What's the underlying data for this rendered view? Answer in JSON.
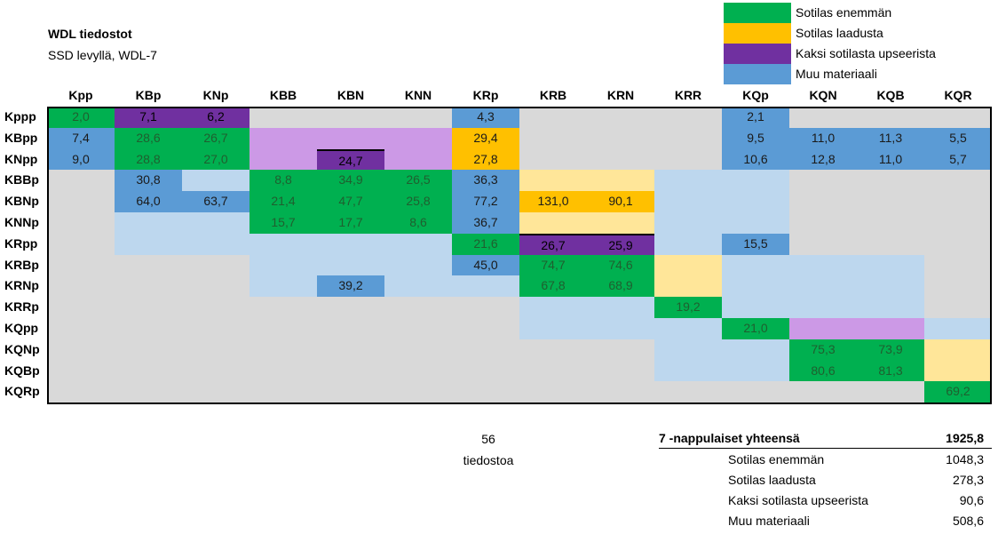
{
  "header": {
    "title": "WDL tiedostot",
    "subtitle": "SSD levyllä, WDL-7"
  },
  "legend": [
    {
      "label": "Sotilas enemmän",
      "color": "#00B050"
    },
    {
      "label": "Sotilas laadusta",
      "color": "#FFC000"
    },
    {
      "label": "Kaksi sotilasta upseerista",
      "color": "#7030A0"
    },
    {
      "label": "Muu materiaali",
      "color": "#5B9BD5"
    }
  ],
  "palette": {
    "grey": "#D9D9D9",
    "light_blue": "#BDD7EE",
    "light_purple": "#CC99E6",
    "light_yellow": "#FFE699",
    "green": "#00B050",
    "yellow": "#FFC000",
    "purple": "#7030A0",
    "blue": "#5B9BD5"
  },
  "table": {
    "columns": [
      "Kpp",
      "KBp",
      "KNp",
      "KBB",
      "KBN",
      "KNN",
      "KRp",
      "KRB",
      "KRN",
      "KRR",
      "KQp",
      "KQN",
      "KQB",
      "KQR"
    ],
    "rows": [
      {
        "label": "Kppp",
        "cells": [
          {
            "v": "2,0",
            "c": "green"
          },
          {
            "v": "7,1",
            "c": "purple"
          },
          {
            "v": "6,2",
            "c": "purple"
          },
          {
            "v": "",
            "c": "grey"
          },
          {
            "v": "",
            "c": "grey"
          },
          {
            "v": "",
            "c": "grey"
          },
          {
            "v": "4,3",
            "c": "blue"
          },
          {
            "v": "",
            "c": "grey"
          },
          {
            "v": "",
            "c": "grey"
          },
          {
            "v": "",
            "c": "grey"
          },
          {
            "v": "2,1",
            "c": "blue"
          },
          {
            "v": "",
            "c": "grey"
          },
          {
            "v": "",
            "c": "grey"
          },
          {
            "v": "",
            "c": "grey"
          }
        ]
      },
      {
        "label": "KBpp",
        "cells": [
          {
            "v": "7,4",
            "c": "blue"
          },
          {
            "v": "28,6",
            "c": "green"
          },
          {
            "v": "26,7",
            "c": "green"
          },
          {
            "v": "",
            "c": "light_purple"
          },
          {
            "v": "",
            "c": "light_purple"
          },
          {
            "v": "",
            "c": "light_purple"
          },
          {
            "v": "29,4",
            "c": "yellow"
          },
          {
            "v": "",
            "c": "grey"
          },
          {
            "v": "",
            "c": "grey"
          },
          {
            "v": "",
            "c": "grey"
          },
          {
            "v": "9,5",
            "c": "blue"
          },
          {
            "v": "11,0",
            "c": "blue"
          },
          {
            "v": "11,3",
            "c": "blue"
          },
          {
            "v": "5,5",
            "c": "blue"
          }
        ]
      },
      {
        "label": "KNpp",
        "cells": [
          {
            "v": "9,0",
            "c": "blue"
          },
          {
            "v": "28,8",
            "c": "green"
          },
          {
            "v": "27,0",
            "c": "green"
          },
          {
            "v": "",
            "c": "light_purple"
          },
          {
            "v": "24,7",
            "c": "purple",
            "top": true
          },
          {
            "v": "",
            "c": "light_purple"
          },
          {
            "v": "27,8",
            "c": "yellow"
          },
          {
            "v": "",
            "c": "grey"
          },
          {
            "v": "",
            "c": "grey"
          },
          {
            "v": "",
            "c": "grey"
          },
          {
            "v": "10,6",
            "c": "blue"
          },
          {
            "v": "12,8",
            "c": "blue"
          },
          {
            "v": "11,0",
            "c": "blue"
          },
          {
            "v": "5,7",
            "c": "blue"
          }
        ]
      },
      {
        "label": "KBBp",
        "cells": [
          {
            "v": "",
            "c": "grey"
          },
          {
            "v": "30,8",
            "c": "blue"
          },
          {
            "v": "",
            "c": "light_blue"
          },
          {
            "v": "8,8",
            "c": "green"
          },
          {
            "v": "34,9",
            "c": "green"
          },
          {
            "v": "26,5",
            "c": "green"
          },
          {
            "v": "36,3",
            "c": "blue"
          },
          {
            "v": "",
            "c": "light_yellow"
          },
          {
            "v": "",
            "c": "light_yellow"
          },
          {
            "v": "",
            "c": "light_blue"
          },
          {
            "v": "",
            "c": "light_blue"
          },
          {
            "v": "",
            "c": "grey"
          },
          {
            "v": "",
            "c": "grey"
          },
          {
            "v": "",
            "c": "grey"
          }
        ]
      },
      {
        "label": "KBNp",
        "cells": [
          {
            "v": "",
            "c": "grey"
          },
          {
            "v": "64,0",
            "c": "blue"
          },
          {
            "v": "63,7",
            "c": "blue"
          },
          {
            "v": "21,4",
            "c": "green"
          },
          {
            "v": "47,7",
            "c": "green"
          },
          {
            "v": "25,8",
            "c": "green"
          },
          {
            "v": "77,2",
            "c": "blue"
          },
          {
            "v": "131,0",
            "c": "yellow"
          },
          {
            "v": "90,1",
            "c": "yellow"
          },
          {
            "v": "",
            "c": "light_blue"
          },
          {
            "v": "",
            "c": "light_blue"
          },
          {
            "v": "",
            "c": "grey"
          },
          {
            "v": "",
            "c": "grey"
          },
          {
            "v": "",
            "c": "grey"
          }
        ]
      },
      {
        "label": "KNNp",
        "cells": [
          {
            "v": "",
            "c": "grey"
          },
          {
            "v": "",
            "c": "light_blue"
          },
          {
            "v": "",
            "c": "light_blue"
          },
          {
            "v": "15,7",
            "c": "green"
          },
          {
            "v": "17,7",
            "c": "green"
          },
          {
            "v": "8,6",
            "c": "green"
          },
          {
            "v": "36,7",
            "c": "blue"
          },
          {
            "v": "",
            "c": "light_yellow"
          },
          {
            "v": "",
            "c": "light_yellow"
          },
          {
            "v": "",
            "c": "light_blue"
          },
          {
            "v": "",
            "c": "light_blue"
          },
          {
            "v": "",
            "c": "grey"
          },
          {
            "v": "",
            "c": "grey"
          },
          {
            "v": "",
            "c": "grey"
          }
        ]
      },
      {
        "label": "KRpp",
        "cells": [
          {
            "v": "",
            "c": "grey"
          },
          {
            "v": "",
            "c": "light_blue"
          },
          {
            "v": "",
            "c": "light_blue"
          },
          {
            "v": "",
            "c": "light_blue"
          },
          {
            "v": "",
            "c": "light_blue"
          },
          {
            "v": "",
            "c": "light_blue"
          },
          {
            "v": "21,6",
            "c": "green"
          },
          {
            "v": "26,7",
            "c": "purple",
            "top": true
          },
          {
            "v": "25,9",
            "c": "purple",
            "top": true
          },
          {
            "v": "",
            "c": "light_blue"
          },
          {
            "v": "15,5",
            "c": "blue"
          },
          {
            "v": "",
            "c": "grey"
          },
          {
            "v": "",
            "c": "grey"
          },
          {
            "v": "",
            "c": "grey"
          }
        ]
      },
      {
        "label": "KRBp",
        "cells": [
          {
            "v": "",
            "c": "grey"
          },
          {
            "v": "",
            "c": "grey"
          },
          {
            "v": "",
            "c": "grey"
          },
          {
            "v": "",
            "c": "light_blue"
          },
          {
            "v": "",
            "c": "light_blue"
          },
          {
            "v": "",
            "c": "light_blue"
          },
          {
            "v": "45,0",
            "c": "blue"
          },
          {
            "v": "74,7",
            "c": "green"
          },
          {
            "v": "74,6",
            "c": "green"
          },
          {
            "v": "",
            "c": "light_yellow"
          },
          {
            "v": "",
            "c": "light_blue"
          },
          {
            "v": "",
            "c": "light_blue"
          },
          {
            "v": "",
            "c": "light_blue"
          },
          {
            "v": "",
            "c": "grey"
          }
        ]
      },
      {
        "label": "KRNp",
        "cells": [
          {
            "v": "",
            "c": "grey"
          },
          {
            "v": "",
            "c": "grey"
          },
          {
            "v": "",
            "c": "grey"
          },
          {
            "v": "",
            "c": "light_blue"
          },
          {
            "v": "39,2",
            "c": "blue"
          },
          {
            "v": "",
            "c": "light_blue"
          },
          {
            "v": "",
            "c": "light_blue"
          },
          {
            "v": "67,8",
            "c": "green"
          },
          {
            "v": "68,9",
            "c": "green"
          },
          {
            "v": "",
            "c": "light_yellow"
          },
          {
            "v": "",
            "c": "light_blue"
          },
          {
            "v": "",
            "c": "light_blue"
          },
          {
            "v": "",
            "c": "light_blue"
          },
          {
            "v": "",
            "c": "grey"
          }
        ]
      },
      {
        "label": "KRRp",
        "cells": [
          {
            "v": "",
            "c": "grey"
          },
          {
            "v": "",
            "c": "grey"
          },
          {
            "v": "",
            "c": "grey"
          },
          {
            "v": "",
            "c": "grey"
          },
          {
            "v": "",
            "c": "grey"
          },
          {
            "v": "",
            "c": "grey"
          },
          {
            "v": "",
            "c": "grey"
          },
          {
            "v": "",
            "c": "light_blue"
          },
          {
            "v": "",
            "c": "light_blue"
          },
          {
            "v": "19,2",
            "c": "green"
          },
          {
            "v": "",
            "c": "light_blue"
          },
          {
            "v": "",
            "c": "light_blue"
          },
          {
            "v": "",
            "c": "light_blue"
          },
          {
            "v": "",
            "c": "grey"
          }
        ]
      },
      {
        "label": "KQpp",
        "cells": [
          {
            "v": "",
            "c": "grey"
          },
          {
            "v": "",
            "c": "grey"
          },
          {
            "v": "",
            "c": "grey"
          },
          {
            "v": "",
            "c": "grey"
          },
          {
            "v": "",
            "c": "grey"
          },
          {
            "v": "",
            "c": "grey"
          },
          {
            "v": "",
            "c": "grey"
          },
          {
            "v": "",
            "c": "light_blue"
          },
          {
            "v": "",
            "c": "light_blue"
          },
          {
            "v": "",
            "c": "light_blue"
          },
          {
            "v": "21,0",
            "c": "green"
          },
          {
            "v": "",
            "c": "light_purple"
          },
          {
            "v": "",
            "c": "light_purple"
          },
          {
            "v": "",
            "c": "light_blue"
          }
        ]
      },
      {
        "label": "KQNp",
        "cells": [
          {
            "v": "",
            "c": "grey"
          },
          {
            "v": "",
            "c": "grey"
          },
          {
            "v": "",
            "c": "grey"
          },
          {
            "v": "",
            "c": "grey"
          },
          {
            "v": "",
            "c": "grey"
          },
          {
            "v": "",
            "c": "grey"
          },
          {
            "v": "",
            "c": "grey"
          },
          {
            "v": "",
            "c": "grey"
          },
          {
            "v": "",
            "c": "grey"
          },
          {
            "v": "",
            "c": "light_blue"
          },
          {
            "v": "",
            "c": "light_blue"
          },
          {
            "v": "75,3",
            "c": "green"
          },
          {
            "v": "73,9",
            "c": "green"
          },
          {
            "v": "",
            "c": "light_yellow"
          }
        ]
      },
      {
        "label": "KQBp",
        "cells": [
          {
            "v": "",
            "c": "grey"
          },
          {
            "v": "",
            "c": "grey"
          },
          {
            "v": "",
            "c": "grey"
          },
          {
            "v": "",
            "c": "grey"
          },
          {
            "v": "",
            "c": "grey"
          },
          {
            "v": "",
            "c": "grey"
          },
          {
            "v": "",
            "c": "grey"
          },
          {
            "v": "",
            "c": "grey"
          },
          {
            "v": "",
            "c": "grey"
          },
          {
            "v": "",
            "c": "light_blue"
          },
          {
            "v": "",
            "c": "light_blue"
          },
          {
            "v": "80,6",
            "c": "green"
          },
          {
            "v": "81,3",
            "c": "green"
          },
          {
            "v": "",
            "c": "light_yellow"
          }
        ]
      },
      {
        "label": "KQRp",
        "cells": [
          {
            "v": "",
            "c": "grey"
          },
          {
            "v": "",
            "c": "grey"
          },
          {
            "v": "",
            "c": "grey"
          },
          {
            "v": "",
            "c": "grey"
          },
          {
            "v": "",
            "c": "grey"
          },
          {
            "v": "",
            "c": "grey"
          },
          {
            "v": "",
            "c": "grey"
          },
          {
            "v": "",
            "c": "grey"
          },
          {
            "v": "",
            "c": "grey"
          },
          {
            "v": "",
            "c": "grey"
          },
          {
            "v": "",
            "c": "grey"
          },
          {
            "v": "",
            "c": "grey"
          },
          {
            "v": "",
            "c": "grey"
          },
          {
            "v": "69,2",
            "c": "green"
          }
        ]
      }
    ]
  },
  "file_count": {
    "value": "56",
    "label": "tiedostoa"
  },
  "summary": {
    "total_label": "7 -nappulaiset yhteensä",
    "total_value": "1925,8",
    "items": [
      {
        "label": "Sotilas enemmän",
        "value": "1048,3"
      },
      {
        "label": "Sotilas laadusta",
        "value": "278,3"
      },
      {
        "label": "Kaksi sotilasta upseerista",
        "value": "90,6"
      },
      {
        "label": "Muu materiaali",
        "value": "508,6"
      }
    ]
  }
}
